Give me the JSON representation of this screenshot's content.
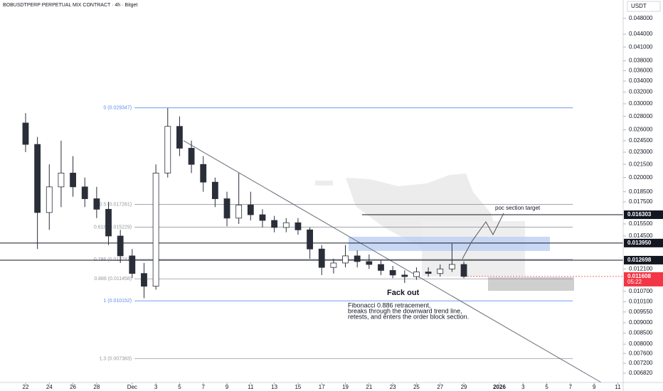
{
  "header": {
    "title": "BOBUSDTPERP PERPETUAL MIX CONTRACT · 4h · Bitget",
    "currency": "USDT"
  },
  "chart_data": {
    "type": "candlestick",
    "log_scale": true,
    "x": [
      0,
      1,
      2,
      3,
      4,
      5,
      6,
      7,
      8,
      9,
      10,
      11,
      12,
      13,
      14,
      15,
      16,
      17,
      18,
      19,
      20,
      21,
      22,
      23,
      24,
      25,
      26,
      27,
      28,
      29,
      30,
      31,
      32,
      33,
      34,
      35,
      36,
      37
    ],
    "open": [
      0.027,
      0.024,
      0.0165,
      0.019,
      0.0205,
      0.019,
      0.0178,
      0.0168,
      0.0145,
      0.013,
      0.0118,
      0.011,
      0.0205,
      0.0265,
      0.0235,
      0.0215,
      0.0195,
      0.0178,
      0.016,
      0.0172,
      0.0163,
      0.0158,
      0.0152,
      0.0156,
      0.015,
      0.0135,
      0.0122,
      0.0125,
      0.013,
      0.0126,
      0.0124,
      0.012,
      0.0117,
      0.0116,
      0.0119,
      0.0118,
      0.0121,
      0.0124
    ],
    "high": [
      0.0285,
      0.025,
      0.0215,
      0.0245,
      0.0225,
      0.02,
      0.019,
      0.0175,
      0.015,
      0.0135,
      0.0125,
      0.0215,
      0.0293,
      0.028,
      0.0245,
      0.0225,
      0.02,
      0.0185,
      0.0205,
      0.0185,
      0.0168,
      0.0162,
      0.016,
      0.016,
      0.0152,
      0.0138,
      0.0128,
      0.0138,
      0.0134,
      0.0131,
      0.0127,
      0.0123,
      0.012,
      0.0122,
      0.0122,
      0.0124,
      0.0139,
      0.0126
    ],
    "low": [
      0.023,
      0.0135,
      0.015,
      0.017,
      0.018,
      0.017,
      0.016,
      0.0138,
      0.0125,
      0.0115,
      0.0103,
      0.0108,
      0.02,
      0.0225,
      0.0205,
      0.0185,
      0.017,
      0.0153,
      0.0155,
      0.0158,
      0.0152,
      0.0148,
      0.0148,
      0.0146,
      0.0128,
      0.0117,
      0.0118,
      0.0122,
      0.0122,
      0.0121,
      0.0117,
      0.0115,
      0.0112,
      0.0114,
      0.0116,
      0.0116,
      0.0119,
      0.0115
    ],
    "close": [
      0.024,
      0.0165,
      0.019,
      0.0205,
      0.019,
      0.0178,
      0.0168,
      0.0145,
      0.013,
      0.0118,
      0.011,
      0.0205,
      0.0265,
      0.0235,
      0.0215,
      0.0195,
      0.0178,
      0.016,
      0.0172,
      0.0163,
      0.0158,
      0.0152,
      0.0156,
      0.015,
      0.0135,
      0.0122,
      0.0125,
      0.013,
      0.0126,
      0.0124,
      0.012,
      0.0117,
      0.0116,
      0.0119,
      0.0118,
      0.0121,
      0.0124,
      0.01161
    ],
    "up_color": "#ffffff",
    "down_color": "#2a2e39",
    "xlim": [
      -2.16,
      50.45
    ],
    "ylim": [
      0.00648,
      0.0531
    ],
    "xticks": [
      {
        "value": 0,
        "label": "22"
      },
      {
        "value": 2,
        "label": "24"
      },
      {
        "value": 4,
        "label": "26"
      },
      {
        "value": 6,
        "label": "28"
      },
      {
        "value": 9,
        "label": "Dec"
      },
      {
        "value": 11,
        "label": "3"
      },
      {
        "value": 13,
        "label": "5"
      },
      {
        "value": 15,
        "label": "7"
      },
      {
        "value": 17,
        "label": "9"
      },
      {
        "value": 19,
        "label": "11"
      },
      {
        "value": 21,
        "label": "13"
      },
      {
        "value": 23,
        "label": "15"
      },
      {
        "value": 25,
        "label": "17"
      },
      {
        "value": 27,
        "label": "19"
      },
      {
        "value": 29,
        "label": "21"
      },
      {
        "value": 31,
        "label": "23"
      },
      {
        "value": 33,
        "label": "25"
      },
      {
        "value": 35,
        "label": "27"
      },
      {
        "value": 37,
        "label": "29"
      },
      {
        "value": 40,
        "label": "2026"
      },
      {
        "value": 42,
        "label": "3"
      },
      {
        "value": 44,
        "label": "5"
      },
      {
        "value": 46,
        "label": "7"
      },
      {
        "value": 48,
        "label": "9"
      },
      {
        "value": 50,
        "label": "11"
      }
    ],
    "yticks": [
      {
        "value": 0.048,
        "label": "0.048000"
      },
      {
        "value": 0.044,
        "label": "0.044000"
      },
      {
        "value": 0.041,
        "label": "0.041000"
      },
      {
        "value": 0.038,
        "label": "0.038000"
      },
      {
        "value": 0.036,
        "label": "0.036000"
      },
      {
        "value": 0.034,
        "label": "0.034000"
      },
      {
        "value": 0.032,
        "label": "0.032000"
      },
      {
        "value": 0.03,
        "label": "0.030000"
      },
      {
        "value": 0.028,
        "label": "0.028000"
      },
      {
        "value": 0.026,
        "label": "0.026000"
      },
      {
        "value": 0.0245,
        "label": "0.024500"
      },
      {
        "value": 0.023,
        "label": "0.023000"
      },
      {
        "value": 0.0215,
        "label": "0.021500"
      },
      {
        "value": 0.02,
        "label": "0.020000"
      },
      {
        "value": 0.0185,
        "label": "0.018500"
      },
      {
        "value": 0.0175,
        "label": "0.017500"
      },
      {
        "value": 0.0155,
        "label": "0.015500"
      },
      {
        "value": 0.0145,
        "label": "0.014500"
      },
      {
        "value": 0.0121,
        "label": "0.012100"
      },
      {
        "value": 0.0107,
        "label": "0.010700"
      },
      {
        "value": 0.0101,
        "label": "0.010100"
      },
      {
        "value": 0.00955,
        "label": "0.009550"
      },
      {
        "value": 0.009,
        "label": "0.009000"
      },
      {
        "value": 0.0085,
        "label": "0.008500"
      },
      {
        "value": 0.008,
        "label": "0.008000"
      },
      {
        "value": 0.0076,
        "label": "0.007600"
      },
      {
        "value": 0.0072,
        "label": "0.007200"
      },
      {
        "value": 0.00682,
        "label": "0.006820"
      }
    ],
    "price_lines": [
      {
        "value": 0.016303,
        "label": "0.016303",
        "color": "#131722",
        "start": 28.4
      },
      {
        "value": 0.01395,
        "label": "0.013950",
        "color": "#131722",
        "start": -2.16
      },
      {
        "value": 0.012698,
        "label": "0.012698",
        "color": "#131722",
        "start": -2.16
      },
      {
        "value": 0.011608,
        "label": "0.011608",
        "color": "#f23645",
        "start": 37.3
      }
    ],
    "countdown": "05:22",
    "fib_levels": [
      {
        "value": 0.029347,
        "label": "0 (0.029347)",
        "color": "#5b8def"
      },
      {
        "value": 0.017261,
        "label": "0.5 (0.017261)",
        "color": "#9598a1"
      },
      {
        "value": 0.015229,
        "label": "0.618 (0.015229)",
        "color": "#9598a1"
      },
      {
        "value": 0.012747,
        "label": "0.786 (0.012747)",
        "color": "#9598a1"
      },
      {
        "value": 0.011458,
        "label": "0.886 (0.011458)",
        "color": "#9598a1"
      },
      {
        "value": 0.010152,
        "label": "1 (0.010152)",
        "color": "#5b8def"
      },
      {
        "value": 0.007383,
        "label": "1.3 (0.007383)",
        "color": "#9598a1"
      }
    ],
    "fib_range": [
      9.2,
      46.2
    ],
    "trendline": {
      "x": [
        13.33,
        48.6
      ],
      "y": [
        0.0245,
        0.00648
      ]
    },
    "annotations": {
      "target": "poc section target",
      "fake": "Fack out",
      "note": [
        "Fibonacci 0.886 retracement,",
        "breaks through the downward trend line,",
        "retests, and enters the order block section."
      ]
    }
  }
}
